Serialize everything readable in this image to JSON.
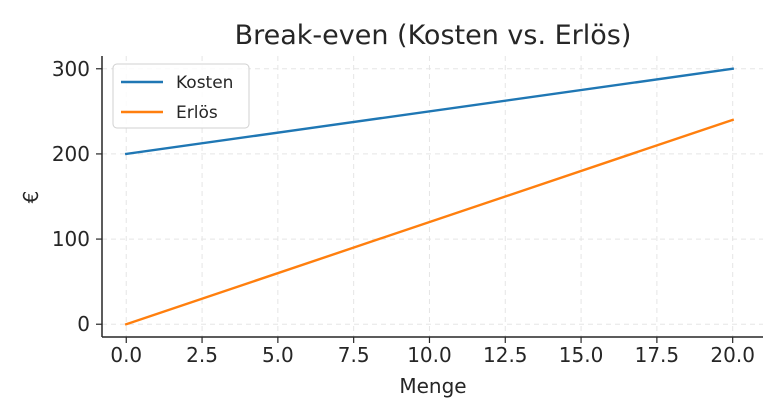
{
  "chart_data": {
    "type": "line",
    "title": "Break-even (Kosten vs. Erlös)",
    "xlabel": "Menge",
    "ylabel": "€",
    "xlim": [
      -0.8,
      21.0
    ],
    "ylim": [
      -15,
      315
    ],
    "xticks": [
      0.0,
      2.5,
      5.0,
      7.5,
      10.0,
      12.5,
      15.0,
      17.5,
      20.0
    ],
    "xtick_labels": [
      "0.0",
      "2.5",
      "5.0",
      "7.5",
      "10.0",
      "12.5",
      "15.0",
      "17.5",
      "20.0"
    ],
    "yticks": [
      0,
      100,
      200,
      300
    ],
    "ytick_labels": [
      "0",
      "100",
      "200",
      "300"
    ],
    "grid": true,
    "legend_position": "upper-left",
    "series": [
      {
        "name": "Kosten",
        "color": "#1f77b4",
        "x": [
          0,
          20
        ],
        "y": [
          200,
          300
        ]
      },
      {
        "name": "Erlös",
        "color": "#ff7f0e",
        "x": [
          0,
          20
        ],
        "y": [
          0,
          240
        ]
      }
    ]
  }
}
